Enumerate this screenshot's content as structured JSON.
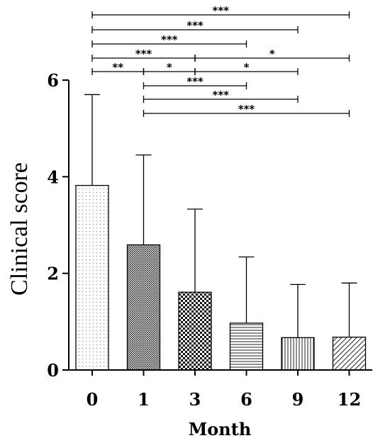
{
  "chart_data": {
    "type": "bar",
    "xlabel": "Month",
    "ylabel": "Clinical score",
    "categories": [
      "0",
      "1",
      "3",
      "6",
      "9",
      "12"
    ],
    "values": [
      3.82,
      2.59,
      1.61,
      0.97,
      0.67,
      0.68
    ],
    "error": [
      1.88,
      1.86,
      1.72,
      1.37,
      1.1,
      1.12
    ],
    "ylim": [
      0,
      6
    ],
    "yticks": [
      "0",
      "2",
      "4",
      "6"
    ],
    "patterns": [
      "dots-sparse",
      "dots-dense",
      "checker",
      "horizontal-lines",
      "vertical-lines",
      "diagonal-lines"
    ],
    "significance": [
      {
        "from": "0",
        "to": "12",
        "label": "***"
      },
      {
        "from": "0",
        "to": "9",
        "label": "***"
      },
      {
        "from": "0",
        "to": "6",
        "label": "***"
      },
      {
        "from": "0",
        "to": "3",
        "label": "***"
      },
      {
        "from": "3",
        "to": "12",
        "label": "*"
      },
      {
        "from": "0",
        "to": "1",
        "label": "**"
      },
      {
        "from": "1",
        "to": "3",
        "label": "*"
      },
      {
        "from": "3",
        "to": "9",
        "label": "*"
      },
      {
        "from": "1",
        "to": "6",
        "label": "***"
      },
      {
        "from": "1",
        "to": "9",
        "label": "***"
      },
      {
        "from": "1",
        "to": "12",
        "label": "***"
      }
    ]
  }
}
